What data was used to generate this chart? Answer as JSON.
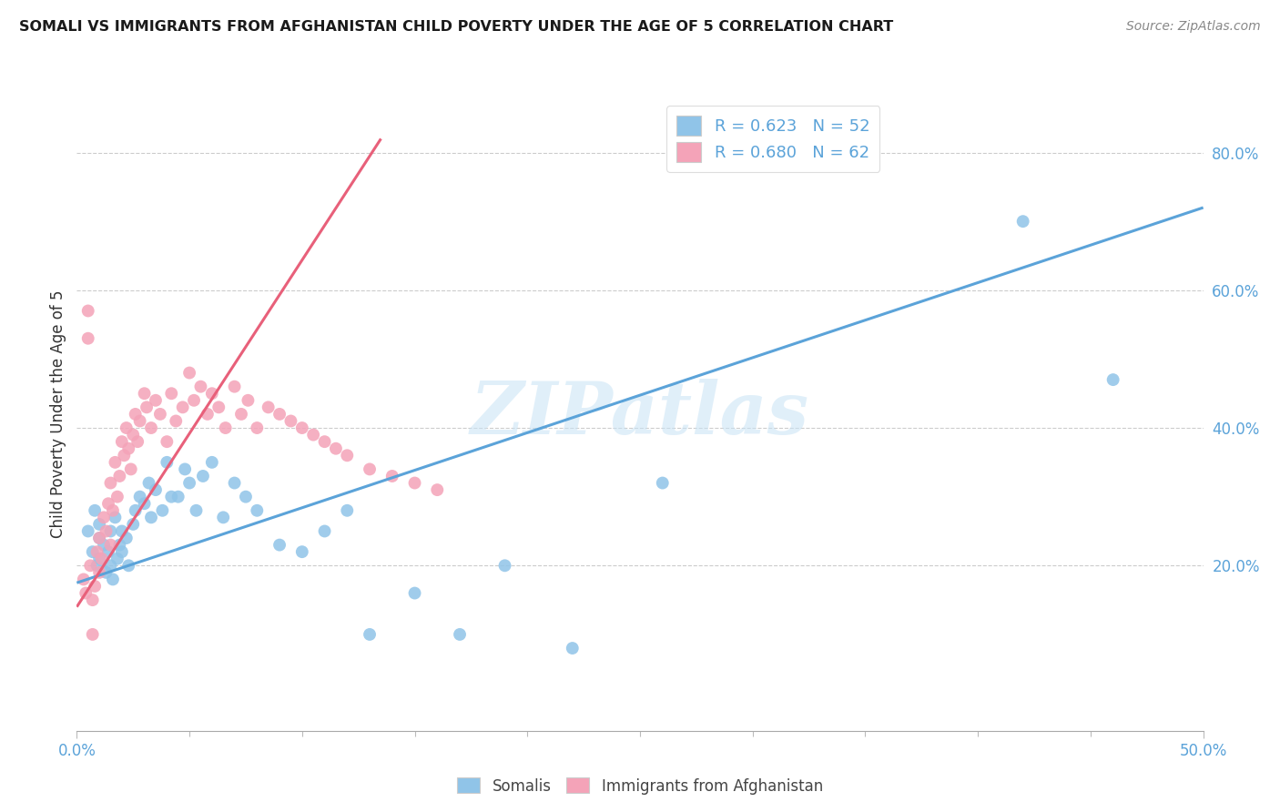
{
  "title": "SOMALI VS IMMIGRANTS FROM AFGHANISTAN CHILD POVERTY UNDER THE AGE OF 5 CORRELATION CHART",
  "source": "Source: ZipAtlas.com",
  "ylabel": "Child Poverty Under the Age of 5",
  "x_range": [
    0.0,
    0.5
  ],
  "y_range": [
    -0.04,
    0.88
  ],
  "y_tick_vals": [
    0.2,
    0.4,
    0.6,
    0.8
  ],
  "y_tick_labels": [
    "20.0%",
    "40.0%",
    "60.0%",
    "80.0%"
  ],
  "somali_color": "#90c4e8",
  "afghan_color": "#f4a3b8",
  "somali_line_color": "#5ba3d9",
  "afghan_line_color": "#e8607a",
  "watermark": "ZIPatlas",
  "somali_line_x": [
    0.0,
    0.5
  ],
  "somali_line_y": [
    0.175,
    0.72
  ],
  "afghan_line_x": [
    0.0,
    0.135
  ],
  "afghan_line_y": [
    0.14,
    0.82
  ],
  "somali_scatter_x": [
    0.005,
    0.007,
    0.008,
    0.009,
    0.01,
    0.01,
    0.01,
    0.012,
    0.013,
    0.014,
    0.015,
    0.015,
    0.016,
    0.017,
    0.018,
    0.019,
    0.02,
    0.02,
    0.022,
    0.023,
    0.025,
    0.026,
    0.028,
    0.03,
    0.032,
    0.033,
    0.035,
    0.038,
    0.04,
    0.042,
    0.045,
    0.048,
    0.05,
    0.053,
    0.056,
    0.06,
    0.065,
    0.07,
    0.075,
    0.08,
    0.09,
    0.1,
    0.11,
    0.12,
    0.13,
    0.15,
    0.17,
    0.19,
    0.22,
    0.26,
    0.42,
    0.46
  ],
  "somali_scatter_y": [
    0.25,
    0.22,
    0.28,
    0.2,
    0.24,
    0.21,
    0.26,
    0.23,
    0.19,
    0.22,
    0.2,
    0.25,
    0.18,
    0.27,
    0.21,
    0.23,
    0.22,
    0.25,
    0.24,
    0.2,
    0.26,
    0.28,
    0.3,
    0.29,
    0.32,
    0.27,
    0.31,
    0.28,
    0.35,
    0.3,
    0.3,
    0.34,
    0.32,
    0.28,
    0.33,
    0.35,
    0.27,
    0.32,
    0.3,
    0.28,
    0.23,
    0.22,
    0.25,
    0.28,
    0.1,
    0.16,
    0.1,
    0.2,
    0.08,
    0.32,
    0.7,
    0.47
  ],
  "afghan_scatter_x": [
    0.003,
    0.004,
    0.005,
    0.006,
    0.007,
    0.008,
    0.009,
    0.01,
    0.01,
    0.011,
    0.012,
    0.013,
    0.014,
    0.015,
    0.015,
    0.016,
    0.017,
    0.018,
    0.019,
    0.02,
    0.021,
    0.022,
    0.023,
    0.024,
    0.025,
    0.026,
    0.027,
    0.028,
    0.03,
    0.031,
    0.033,
    0.035,
    0.037,
    0.04,
    0.042,
    0.044,
    0.047,
    0.05,
    0.052,
    0.055,
    0.058,
    0.06,
    0.063,
    0.066,
    0.07,
    0.073,
    0.076,
    0.08,
    0.085,
    0.09,
    0.095,
    0.1,
    0.105,
    0.11,
    0.115,
    0.12,
    0.13,
    0.14,
    0.15,
    0.16,
    0.005,
    0.007
  ],
  "afghan_scatter_y": [
    0.18,
    0.16,
    0.57,
    0.2,
    0.15,
    0.17,
    0.22,
    0.19,
    0.24,
    0.21,
    0.27,
    0.25,
    0.29,
    0.23,
    0.32,
    0.28,
    0.35,
    0.3,
    0.33,
    0.38,
    0.36,
    0.4,
    0.37,
    0.34,
    0.39,
    0.42,
    0.38,
    0.41,
    0.45,
    0.43,
    0.4,
    0.44,
    0.42,
    0.38,
    0.45,
    0.41,
    0.43,
    0.48,
    0.44,
    0.46,
    0.42,
    0.45,
    0.43,
    0.4,
    0.46,
    0.42,
    0.44,
    0.4,
    0.43,
    0.42,
    0.41,
    0.4,
    0.39,
    0.38,
    0.37,
    0.36,
    0.34,
    0.33,
    0.32,
    0.31,
    0.53,
    0.1
  ]
}
